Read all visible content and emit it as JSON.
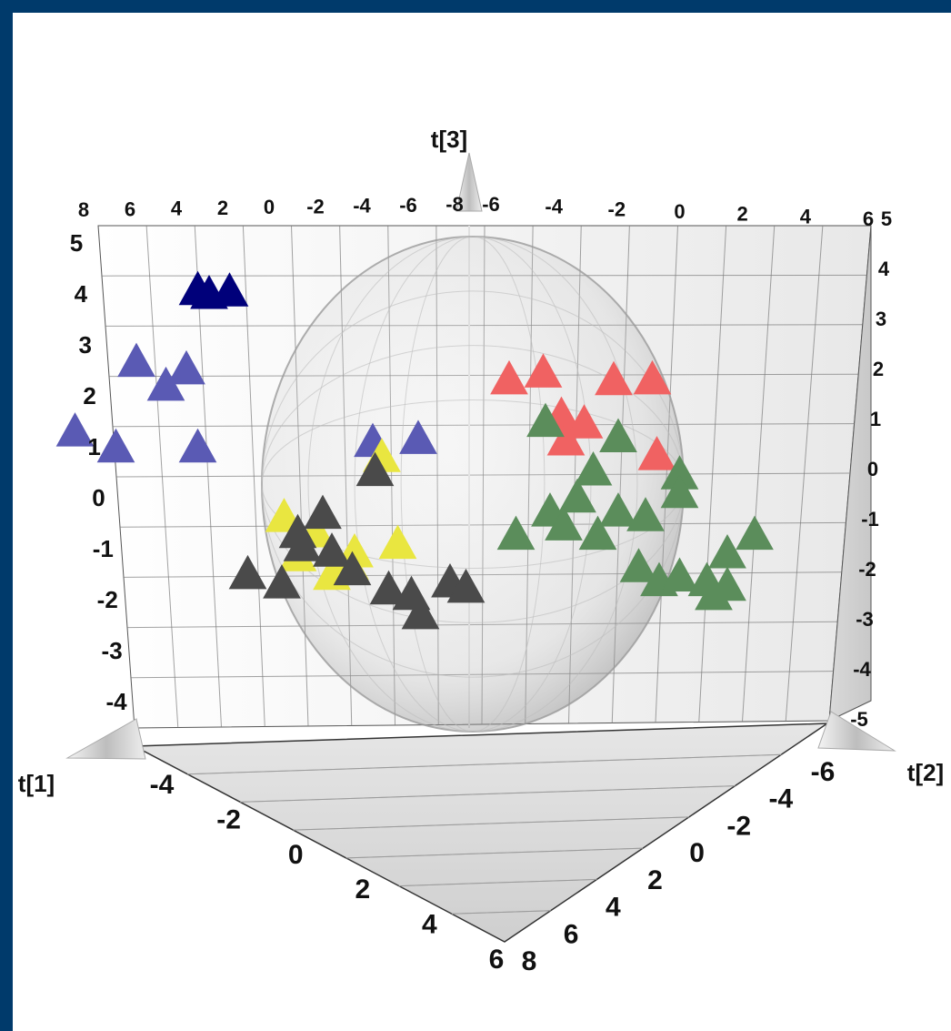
{
  "chart_data": {
    "type": "scatter",
    "projection": "3d",
    "axes": {
      "t1": {
        "label": "t[1]",
        "ticks": [
          "-4",
          "-2",
          "0",
          "2",
          "4",
          "6"
        ],
        "back_ticks": [
          "8",
          "6",
          "4",
          "2",
          "0",
          "-2",
          "-4",
          "-6",
          "-8"
        ]
      },
      "t2": {
        "label": "t[2]",
        "ticks": [
          "-6",
          "-4",
          "-2",
          "0",
          "2",
          "4",
          "6",
          "8"
        ],
        "back_ticks": [
          "-6",
          "-4",
          "-2",
          "0",
          "2",
          "4",
          "6"
        ]
      },
      "t3": {
        "label": "t[3]",
        "ticks": [
          "5",
          "4",
          "3",
          "2",
          "1",
          "0",
          "-1",
          "-2",
          "-3",
          "-4"
        ],
        "right_ticks": [
          "5",
          "4",
          "3",
          "2",
          "1",
          "0",
          "-1",
          "-2",
          "-3",
          "-4",
          "-5"
        ]
      }
    },
    "ellipse": "Hotelling T2 sphere",
    "series": [
      {
        "color": "#00007a",
        "marker": "triangle",
        "points": [
          [
            -4.2,
            0.5,
            4.3
          ],
          [
            -3.8,
            0.7,
            4.3
          ],
          [
            -4.0,
            0.4,
            4.2
          ]
        ]
      },
      {
        "color": "#5a5ab4",
        "marker": "triangle",
        "points": [
          [
            -5.2,
            0.8,
            2.8
          ],
          [
            -4.6,
            1.2,
            2.7
          ],
          [
            -4.8,
            0.9,
            2.3
          ],
          [
            -6.1,
            0.8,
            1.3
          ],
          [
            -5.6,
            1.1,
            1.0
          ],
          [
            -4.4,
            1.1,
            1.0
          ],
          [
            -2.0,
            1.6,
            1.2
          ],
          [
            -1.2,
            1.2,
            1.2
          ]
        ]
      },
      {
        "color": "#f06262",
        "marker": "triangle",
        "points": [
          [
            0.1,
            1.3,
            2.5
          ],
          [
            0.7,
            1.0,
            2.6
          ],
          [
            1.6,
            1.4,
            2.5
          ],
          [
            2.2,
            1.3,
            2.5
          ],
          [
            0.7,
            1.8,
            1.8
          ],
          [
            1.1,
            1.6,
            1.6
          ],
          [
            0.9,
            1.4,
            1.2
          ],
          [
            2.2,
            1.5,
            0.9
          ]
        ]
      },
      {
        "color": "#5b8d5b",
        "marker": "triangle",
        "points": [
          [
            0.6,
            1.4,
            1.6
          ],
          [
            1.6,
            1.6,
            1.3
          ],
          [
            1.2,
            1.7,
            0.6
          ],
          [
            2.5,
            1.6,
            0.5
          ],
          [
            2.5,
            1.6,
            0.1
          ],
          [
            1.0,
            1.6,
            0.0
          ],
          [
            0.6,
            1.6,
            -0.3
          ],
          [
            1.6,
            1.6,
            -0.3
          ],
          [
            2.0,
            1.6,
            -0.4
          ],
          [
            0.8,
            1.6,
            -0.6
          ],
          [
            1.3,
            1.6,
            -0.8
          ],
          [
            3.6,
            1.6,
            -0.8
          ],
          [
            3.2,
            1.6,
            -1.2
          ],
          [
            1.9,
            1.6,
            -1.5
          ],
          [
            2.2,
            1.6,
            -1.8
          ],
          [
            2.5,
            1.6,
            -1.7
          ],
          [
            2.9,
            1.6,
            -1.8
          ],
          [
            3.2,
            1.6,
            -1.9
          ],
          [
            3.0,
            1.6,
            -2.1
          ],
          [
            0.1,
            1.6,
            -0.8
          ]
        ]
      },
      {
        "color": "#e9e640",
        "marker": "triangle",
        "points": [
          [
            -2.7,
            -0.2,
            -0.7
          ],
          [
            -2.3,
            0.0,
            -1.0
          ],
          [
            -1.8,
            0.2,
            -1.4
          ],
          [
            -2.6,
            0.1,
            -1.5
          ],
          [
            -1.8,
            0.0,
            -1.7
          ],
          [
            -2.1,
            0.1,
            -1.9
          ],
          [
            -1.2,
            0.3,
            -1.2
          ],
          [
            -1.5,
            0.5,
            0.7
          ]
        ]
      },
      {
        "color": "#4a4a4a",
        "marker": "triangle",
        "points": [
          [
            -1.6,
            0.5,
            0.4
          ],
          [
            -2.2,
            0.0,
            -0.6
          ],
          [
            -2.6,
            0.1,
            -1.0
          ],
          [
            -2.5,
            0.0,
            -1.3
          ],
          [
            -2.1,
            0.1,
            -1.4
          ],
          [
            -3.3,
            0.0,
            -1.9
          ],
          [
            -2.8,
            0.0,
            -2.1
          ],
          [
            -1.3,
            0.2,
            -2.2
          ],
          [
            -1.0,
            0.3,
            -2.3
          ],
          [
            -0.5,
            0.5,
            -2.0
          ],
          [
            -0.9,
            0.4,
            -2.7
          ],
          [
            -0.3,
            0.6,
            -2.1
          ],
          [
            -1.8,
            0.1,
            -1.8
          ]
        ]
      }
    ]
  }
}
